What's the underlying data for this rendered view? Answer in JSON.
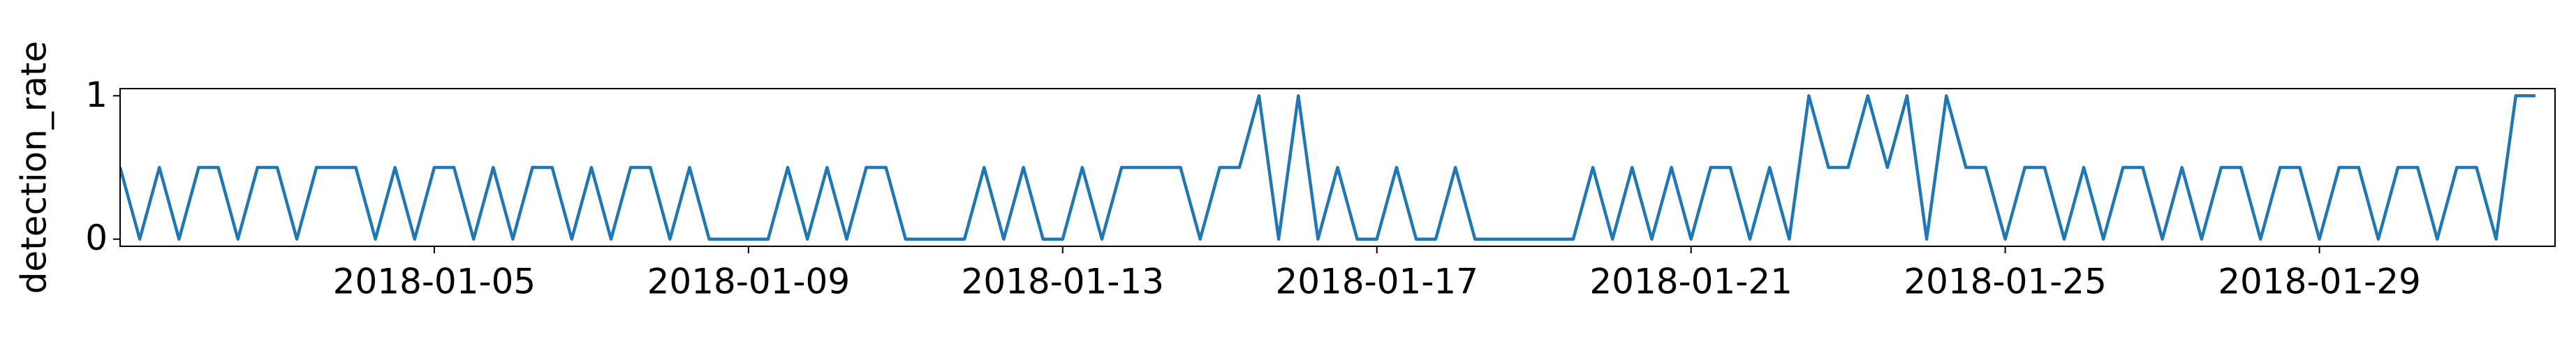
{
  "chart_data": {
    "type": "line",
    "ylabel": "detection_rate",
    "x": [
      "2018-01-01 00:00",
      "2018-01-01 06:00",
      "2018-01-01 12:00",
      "2018-01-01 18:00",
      "2018-01-02 00:00",
      "2018-01-02 06:00",
      "2018-01-02 12:00",
      "2018-01-02 18:00",
      "2018-01-03 00:00",
      "2018-01-03 06:00",
      "2018-01-03 12:00",
      "2018-01-03 18:00",
      "2018-01-04 00:00",
      "2018-01-04 06:00",
      "2018-01-04 12:00",
      "2018-01-04 18:00",
      "2018-01-05 00:00",
      "2018-01-05 06:00",
      "2018-01-05 12:00",
      "2018-01-05 18:00",
      "2018-01-06 00:00",
      "2018-01-06 06:00",
      "2018-01-06 12:00",
      "2018-01-06 18:00",
      "2018-01-07 00:00",
      "2018-01-07 06:00",
      "2018-01-07 12:00",
      "2018-01-07 18:00",
      "2018-01-08 00:00",
      "2018-01-08 06:00",
      "2018-01-08 12:00",
      "2018-01-08 18:00",
      "2018-01-09 00:00",
      "2018-01-09 06:00",
      "2018-01-09 12:00",
      "2018-01-09 18:00",
      "2018-01-10 00:00",
      "2018-01-10 06:00",
      "2018-01-10 12:00",
      "2018-01-10 18:00",
      "2018-01-11 00:00",
      "2018-01-11 06:00",
      "2018-01-11 12:00",
      "2018-01-11 18:00",
      "2018-01-12 00:00",
      "2018-01-12 06:00",
      "2018-01-12 12:00",
      "2018-01-12 18:00",
      "2018-01-13 00:00",
      "2018-01-13 06:00",
      "2018-01-13 12:00",
      "2018-01-13 18:00",
      "2018-01-14 00:00",
      "2018-01-14 06:00",
      "2018-01-14 12:00",
      "2018-01-14 18:00",
      "2018-01-15 00:00",
      "2018-01-15 06:00",
      "2018-01-15 12:00",
      "2018-01-15 18:00",
      "2018-01-16 00:00",
      "2018-01-16 06:00",
      "2018-01-16 12:00",
      "2018-01-16 18:00",
      "2018-01-17 00:00",
      "2018-01-17 06:00",
      "2018-01-17 12:00",
      "2018-01-17 18:00",
      "2018-01-18 00:00",
      "2018-01-18 06:00",
      "2018-01-18 12:00",
      "2018-01-18 18:00",
      "2018-01-19 00:00",
      "2018-01-19 06:00",
      "2018-01-19 12:00",
      "2018-01-19 18:00",
      "2018-01-20 00:00",
      "2018-01-20 06:00",
      "2018-01-20 12:00",
      "2018-01-20 18:00",
      "2018-01-21 00:00",
      "2018-01-21 06:00",
      "2018-01-21 12:00",
      "2018-01-21 18:00",
      "2018-01-22 00:00",
      "2018-01-22 06:00",
      "2018-01-22 12:00",
      "2018-01-22 18:00",
      "2018-01-23 00:00",
      "2018-01-23 06:00",
      "2018-01-23 12:00",
      "2018-01-23 18:00",
      "2018-01-24 00:00",
      "2018-01-24 06:00",
      "2018-01-24 12:00",
      "2018-01-24 18:00",
      "2018-01-25 00:00",
      "2018-01-25 06:00",
      "2018-01-25 12:00",
      "2018-01-25 18:00",
      "2018-01-26 00:00",
      "2018-01-26 06:00",
      "2018-01-26 12:00",
      "2018-01-26 18:00",
      "2018-01-27 00:00",
      "2018-01-27 06:00",
      "2018-01-27 12:00",
      "2018-01-27 18:00",
      "2018-01-28 00:00",
      "2018-01-28 06:00",
      "2018-01-28 12:00",
      "2018-01-28 18:00",
      "2018-01-29 00:00",
      "2018-01-29 06:00",
      "2018-01-29 12:00",
      "2018-01-29 18:00",
      "2018-01-30 00:00",
      "2018-01-30 06:00",
      "2018-01-30 12:00",
      "2018-01-30 18:00",
      "2018-01-31 00:00",
      "2018-01-31 06:00",
      "2018-01-31 12:00",
      "2018-01-31 18:00"
    ],
    "series": [
      {
        "color": "#1f77b4",
        "values": [
          0.5,
          0,
          0.5,
          0,
          0.5,
          0.5,
          0,
          0.5,
          0.5,
          0,
          0.5,
          0.5,
          0.5,
          0,
          0.5,
          0,
          0.5,
          0.5,
          0,
          0.5,
          0,
          0.5,
          0.5,
          0,
          0.5,
          0,
          0.5,
          0.5,
          0,
          0.5,
          0,
          0,
          0,
          0,
          0.5,
          0,
          0.5,
          0,
          0.5,
          0.5,
          0,
          0,
          0,
          0,
          0.5,
          0,
          0.5,
          0,
          0,
          0.5,
          0,
          0.5,
          0.5,
          0.5,
          0.5,
          0,
          0.5,
          0.5,
          1,
          0,
          1,
          0,
          0.5,
          0,
          0,
          0.5,
          0,
          0,
          0.5,
          0,
          0,
          0,
          0,
          0,
          0,
          0.5,
          0,
          0.5,
          0,
          0.5,
          0,
          0.5,
          0.5,
          0,
          0.5,
          0,
          1,
          0.5,
          0.5,
          1,
          0.5,
          1,
          0,
          1,
          0.5,
          0.5,
          0,
          0.5,
          0.5,
          0,
          0.5,
          0,
          0.5,
          0.5,
          0,
          0.5,
          0,
          0.5,
          0.5,
          0,
          0.5,
          0.5,
          0,
          0.5,
          0.5,
          0,
          0.5,
          0.5,
          0,
          0.5,
          0.5,
          0,
          1,
          1
        ]
      }
    ],
    "xlim": [
      "2018-01-01",
      "2018-02-01"
    ],
    "xticks": [
      "2018-01-05",
      "2018-01-09",
      "2018-01-13",
      "2018-01-17",
      "2018-01-21",
      "2018-01-25",
      "2018-01-29"
    ],
    "ylim": [
      -0.05,
      1.05
    ],
    "yticks": [
      0,
      1
    ],
    "grid": false
  }
}
